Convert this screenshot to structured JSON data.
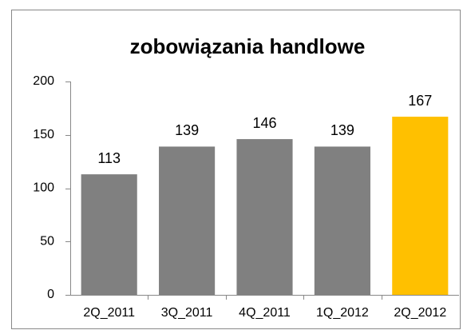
{
  "chart_data": {
    "type": "bar",
    "title": "zobowiązania handlowe",
    "categories": [
      "2Q_2011",
      "3Q_2011",
      "4Q_2011",
      "1Q_2012",
      "2Q_2012"
    ],
    "values": [
      113,
      139,
      146,
      139,
      167
    ],
    "colors": [
      "#808080",
      "#808080",
      "#808080",
      "#808080",
      "#ffc000"
    ],
    "ylim": [
      0,
      200
    ],
    "yticks": [
      0,
      50,
      100,
      150,
      200
    ],
    "grid": false
  }
}
